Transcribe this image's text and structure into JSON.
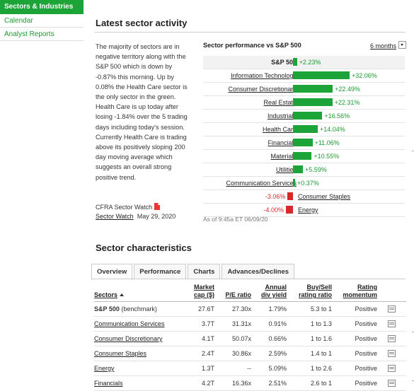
{
  "sidebar": {
    "items": [
      {
        "label": "Sectors & Industries",
        "active": true
      },
      {
        "label": "Calendar",
        "active": false
      },
      {
        "label": "Analyst Reports",
        "active": false
      }
    ]
  },
  "activity": {
    "title": "Latest sector activity",
    "description": "The majority of sectors are in negative territory along with the S&P 500 which is down by -0.87% this morning. Up by 0.08% the Health Care sector is the only sector in the green. Health Care is up today after losing -1.84% over the 5 trading days including today's session. Currently Health Care is trading above its positively sloping 200 day moving average which suggests an overall strong positive trend.",
    "cfra_label": "CFRA Sector Watch",
    "cfra_link": "Sector Watch",
    "cfra_date": "May 29, 2020"
  },
  "performance": {
    "title": "Sector performance vs S&P 500",
    "period": "6 months",
    "as_of": "As of 9:45a ET 06/09/20",
    "rows": [
      {
        "name": "S&P 500",
        "value": 2.23,
        "label": "+2.23%"
      },
      {
        "name": "Information Technology",
        "value": 32.06,
        "label": "+32.06%"
      },
      {
        "name": "Consumer Discretionary",
        "value": 22.49,
        "label": "+22.49%"
      },
      {
        "name": "Real Estate",
        "value": 22.31,
        "label": "+22.31%"
      },
      {
        "name": "Industrials",
        "value": 16.56,
        "label": "+16.56%"
      },
      {
        "name": "Health Care",
        "value": 14.04,
        "label": "+14.04%"
      },
      {
        "name": "Financials",
        "value": 11.06,
        "label": "+11.06%"
      },
      {
        "name": "Materials",
        "value": 10.55,
        "label": "+10.55%"
      },
      {
        "name": "Utilities",
        "value": 5.59,
        "label": "+5.59%"
      },
      {
        "name": "Communication Services",
        "value": 0.37,
        "label": "+0.37%"
      },
      {
        "name": "Consumer Staples",
        "value": -3.06,
        "label": "-3.06%"
      },
      {
        "name": "Energy",
        "value": -4.0,
        "label": "-4.00%"
      }
    ],
    "colors": {
      "positive": "#1da438",
      "negative": "#d62a2a"
    }
  },
  "characteristics": {
    "title": "Sector characteristics",
    "tabs": [
      "Overview",
      "Performance",
      "Charts",
      "Advances/Declines"
    ],
    "active_tab": "Overview",
    "headers": {
      "sectors": "Sectors",
      "mcap_1": "Market",
      "mcap_2": "cap ($)",
      "pe": "P/E ratio",
      "div_1": "Annual",
      "div_2": "div yield",
      "bs_1": "Buy/Sell",
      "bs_2": "rating ratio",
      "rm_1": "Rating",
      "rm_2": "momentum"
    },
    "rows": [
      {
        "name": "S&P 500",
        "suffix": "(benchmark)",
        "mcap": "27.6T",
        "pe": "27.30x",
        "div": "1.79%",
        "bs": "5.3 to 1",
        "mom": "Positive"
      },
      {
        "name": "Communication Services",
        "suffix": "",
        "mcap": "3.7T",
        "pe": "31.31x",
        "div": "0.91%",
        "bs": "1 to 1.3",
        "mom": "Positive"
      },
      {
        "name": "Consumer Discretionary",
        "suffix": "",
        "mcap": "4.1T",
        "pe": "50.07x",
        "div": "0.66%",
        "bs": "1 to 1.6",
        "mom": "Positive"
      },
      {
        "name": "Consumer Staples",
        "suffix": "",
        "mcap": "2.4T",
        "pe": "30.86x",
        "div": "2.59%",
        "bs": "1.4 to 1",
        "mom": "Positive"
      },
      {
        "name": "Energy",
        "suffix": "",
        "mcap": "1.3T",
        "pe": "--",
        "div": "5.09%",
        "bs": "1 to 2.6",
        "mom": "Positive"
      },
      {
        "name": "Financials",
        "suffix": "",
        "mcap": "4.2T",
        "pe": "16.36x",
        "div": "2.51%",
        "bs": "2.6 to 1",
        "mom": "Positive"
      }
    ]
  }
}
